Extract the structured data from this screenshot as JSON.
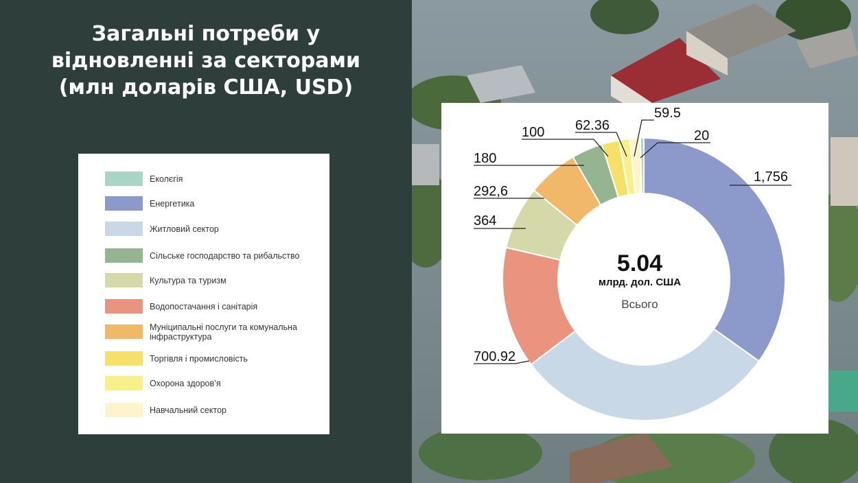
{
  "title": "Загальні потреби у\nвідновленні за секторами\n(млн доларів США, USD)",
  "legend": [
    {
      "label": "Еколєгія",
      "color": "#a8d5c6"
    },
    {
      "label": "Енергетика",
      "color": "#8c99cb"
    },
    {
      "label": "Житловий сектор",
      "color": "#c8d8e6"
    },
    {
      "label": "Сільське господарство та рибальство",
      "color": "#94b590"
    },
    {
      "label": "Культура та туризм",
      "color": "#d5d8a8"
    },
    {
      "label": "Водопостачання і санітарія",
      "color": "#ea9480"
    },
    {
      "label": "Муніципальні послуги та комунальна інфраструктура",
      "color": "#f2b86a"
    },
    {
      "label": "Торгівля і промисловість",
      "color": "#f5e06a"
    },
    {
      "label": "Охорона здоров’я",
      "color": "#f8f08a"
    },
    {
      "label": "Навчальний сектор",
      "color": "#fdf3cc"
    }
  ],
  "chart_data": {
    "type": "pie",
    "donut": true,
    "center": {
      "value": "5.04",
      "unit": "млрд. дол. США",
      "caption": "Всього"
    },
    "slices": [
      {
        "name": "Енергетика",
        "value": 1756,
        "label": "1,756",
        "color": "#8c99cb"
      },
      {
        "name": "Житловий сектор",
        "value": 1505,
        "label": "",
        "color": "#c8d8e6"
      },
      {
        "name": "Водопостачання і санітарія",
        "value": 700.92,
        "label": "700.92",
        "color": "#ea9480"
      },
      {
        "name": "Культура та туризм",
        "value": 364,
        "label": "364",
        "color": "#d5d8a8"
      },
      {
        "name": "Муніципальні послуги та комунальна інфраструктура",
        "value": 292.6,
        "label": "292,6",
        "color": "#f2b86a"
      },
      {
        "name": "Сільське господарство та рибальство",
        "value": 180,
        "label": "180",
        "color": "#94b590"
      },
      {
        "name": "Торгівля і промисловість",
        "value": 100,
        "label": "100",
        "color": "#f5e06a"
      },
      {
        "name": "Охорона здоров’я",
        "value": 62.36,
        "label": "62.36",
        "color": "#f8f08a"
      },
      {
        "name": "Навчальний сектор",
        "value": 59.5,
        "label": "59.5",
        "color": "#fdf3cc"
      },
      {
        "name": "Еколєгія",
        "value": 20,
        "label": "20",
        "color": "#a8d5c6"
      }
    ]
  }
}
